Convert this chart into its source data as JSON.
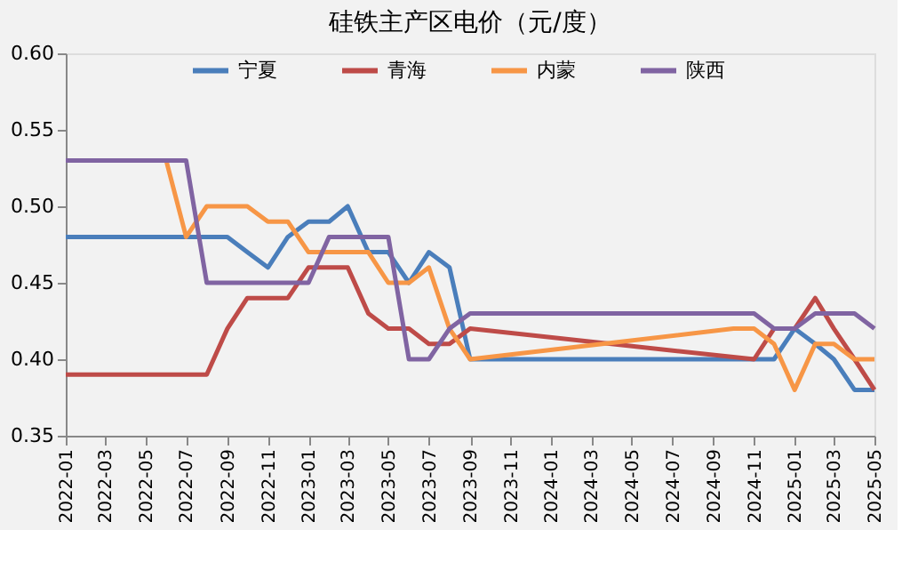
{
  "chart_data": {
    "type": "line",
    "title": "硅铁主产区电价（元/度）",
    "xlim": [
      "2022-01",
      "2025-05"
    ],
    "xticks": [
      "2022-01",
      "2022-03",
      "2022-05",
      "2022-07",
      "2022-09",
      "2022-11",
      "2023-01",
      "2023-03",
      "2023-05",
      "2023-07",
      "2023-09",
      "2023-11",
      "2024-01",
      "2024-03",
      "2024-05",
      "2024-07",
      "2024-09",
      "2024-11",
      "2025-01",
      "2025-03",
      "2025-05"
    ],
    "ylim": [
      0.35,
      0.6
    ],
    "yticks": [
      0.35,
      {
        "value": 0.4,
        "label": "0.40"
      },
      0.45,
      {
        "value": 0.5,
        "label": "0.50"
      },
      0.55,
      {
        "value": 0.6,
        "label": "0.60"
      }
    ],
    "grid": false,
    "legend": "top",
    "line_style": "solid",
    "marker": "none",
    "series": [
      {
        "name": "宁夏",
        "color": "#4a7ebb",
        "x": [
          "2022-01",
          "2022-02",
          "2022-03",
          "2022-04",
          "2022-05",
          "2022-06",
          "2022-07",
          "2022-08",
          "2022-09",
          "2022-10",
          "2022-11",
          "2022-12",
          "2023-01",
          "2023-02",
          "2023-03",
          "2023-04",
          "2023-05",
          "2023-06",
          "2023-07",
          "2023-08",
          "2023-09",
          "2023-10",
          "2023-11",
          "2023-12",
          "2024-01",
          "2024-02",
          "2024-03",
          "2024-04",
          "2024-05",
          "2024-06",
          "2024-07",
          "2024-08",
          "2024-09",
          "2024-10",
          "2024-11",
          "2024-12",
          "2025-01",
          "2025-02",
          "2025-03",
          "2025-04",
          "2025-05"
        ],
        "values": [
          0.48,
          0.48,
          0.48,
          0.48,
          0.48,
          0.48,
          0.48,
          0.48,
          0.48,
          0.47,
          0.46,
          0.48,
          0.49,
          0.49,
          0.5,
          0.47,
          0.47,
          0.45,
          0.47,
          0.46,
          0.4,
          0.4,
          0.4,
          0.4,
          0.4,
          0.4,
          0.4,
          0.4,
          0.4,
          0.4,
          0.4,
          0.4,
          0.4,
          0.4,
          0.4,
          0.4,
          0.42,
          0.41,
          0.4,
          0.38,
          0.38
        ]
      },
      {
        "name": "青海",
        "color": "#be4b48",
        "x": [
          "2022-01",
          "2022-02",
          "2022-03",
          "2022-04",
          "2022-05",
          "2022-06",
          "2022-07",
          "2022-08",
          "2022-09",
          "2022-10",
          "2022-11",
          "2022-12",
          "2023-01",
          "2023-02",
          "2023-03",
          "2023-04",
          "2023-05",
          "2023-06",
          "2023-07",
          "2023-08",
          "2023-09",
          "2024-11",
          "2024-12",
          "2025-01",
          "2025-02",
          "2025-03",
          "2025-04",
          "2025-05"
        ],
        "values": [
          0.39,
          0.39,
          0.39,
          0.39,
          0.39,
          0.39,
          0.39,
          0.39,
          0.42,
          0.44,
          0.44,
          0.44,
          0.46,
          0.46,
          0.46,
          0.43,
          0.42,
          0.42,
          0.41,
          0.41,
          0.42,
          0.4,
          0.42,
          0.42,
          0.44,
          0.42,
          0.4,
          0.38
        ]
      },
      {
        "name": "内蒙",
        "color": "#f79646",
        "x": [
          "2022-06",
          "2022-07",
          "2022-08",
          "2022-09",
          "2022-10",
          "2022-11",
          "2022-12",
          "2023-01",
          "2023-02",
          "2023-03",
          "2023-04",
          "2023-05",
          "2023-06",
          "2023-07",
          "2023-08",
          "2023-09",
          "2024-10",
          "2024-11",
          "2024-12",
          "2025-01",
          "2025-02",
          "2025-03",
          "2025-04",
          "2025-05"
        ],
        "values": [
          0.53,
          0.48,
          0.5,
          0.5,
          0.5,
          0.49,
          0.49,
          0.47,
          0.47,
          0.47,
          0.47,
          0.45,
          0.45,
          0.46,
          0.42,
          0.4,
          0.42,
          0.42,
          0.41,
          0.38,
          0.41,
          0.41,
          0.4,
          0.4
        ]
      },
      {
        "name": "陕西",
        "color": "#8064a2",
        "x": [
          "2022-01",
          "2022-02",
          "2022-03",
          "2022-04",
          "2022-05",
          "2022-06",
          "2022-07",
          "2022-08",
          "2022-09",
          "2022-10",
          "2022-11",
          "2022-12",
          "2023-01",
          "2023-02",
          "2023-03",
          "2023-04",
          "2023-05",
          "2023-06",
          "2023-07",
          "2023-08",
          "2023-09",
          "2023-10",
          "2023-11",
          "2023-12",
          "2024-01",
          "2024-02",
          "2024-03",
          "2024-04",
          "2024-05",
          "2024-06",
          "2024-07",
          "2024-08",
          "2024-09",
          "2024-10",
          "2024-11",
          "2024-12",
          "2025-01",
          "2025-02",
          "2025-03",
          "2025-04",
          "2025-05"
        ],
        "values": [
          0.53,
          0.53,
          0.53,
          0.53,
          0.53,
          0.53,
          0.53,
          0.45,
          0.45,
          0.45,
          0.45,
          0.45,
          0.45,
          0.48,
          0.48,
          0.48,
          0.48,
          0.4,
          0.4,
          0.42,
          0.43,
          0.43,
          0.43,
          0.43,
          0.43,
          0.43,
          0.43,
          0.43,
          0.43,
          0.43,
          0.43,
          0.43,
          0.43,
          0.43,
          0.43,
          0.42,
          0.42,
          0.43,
          0.43,
          0.43,
          0.42
        ]
      }
    ]
  }
}
